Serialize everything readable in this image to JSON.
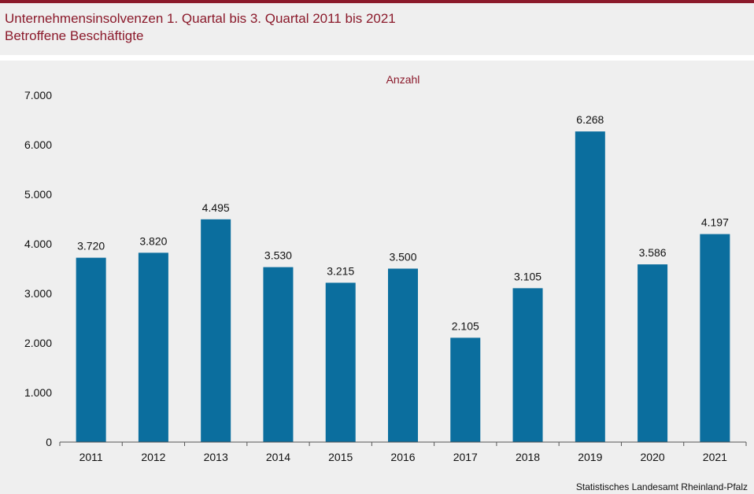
{
  "header": {
    "title": "Unternehmensinsolvenzen 1. Quartal bis 3. Quartal 2011 bis 2021",
    "subtitle": "Betroffene Beschäftigte"
  },
  "source": "Statistisches Landesamt Rheinland-Pfalz",
  "colors": {
    "accent": "#8b1a2b",
    "bar": "#0b6e9e",
    "background": "#efefef"
  },
  "chart_data": {
    "type": "bar",
    "ylabel": "Anzahl",
    "categories": [
      "2011",
      "2012",
      "2013",
      "2014",
      "2015",
      "2016",
      "2017",
      "2018",
      "2019",
      "2020",
      "2021"
    ],
    "values": [
      3720,
      3820,
      4495,
      3530,
      3215,
      3500,
      2105,
      3105,
      6268,
      3586,
      4197
    ],
    "value_labels": [
      "3.720",
      "3.820",
      "4.495",
      "3.530",
      "3.215",
      "3.500",
      "2.105",
      "3.105",
      "6.268",
      "3.586",
      "4.197"
    ],
    "ylim": [
      0,
      7000
    ],
    "yticks": [
      0,
      1000,
      2000,
      3000,
      4000,
      5000,
      6000,
      7000
    ],
    "ytick_labels": [
      "0",
      "1.000",
      "2.000",
      "3.000",
      "4.000",
      "5.000",
      "6.000",
      "7.000"
    ],
    "grid": false,
    "legend": "none"
  }
}
